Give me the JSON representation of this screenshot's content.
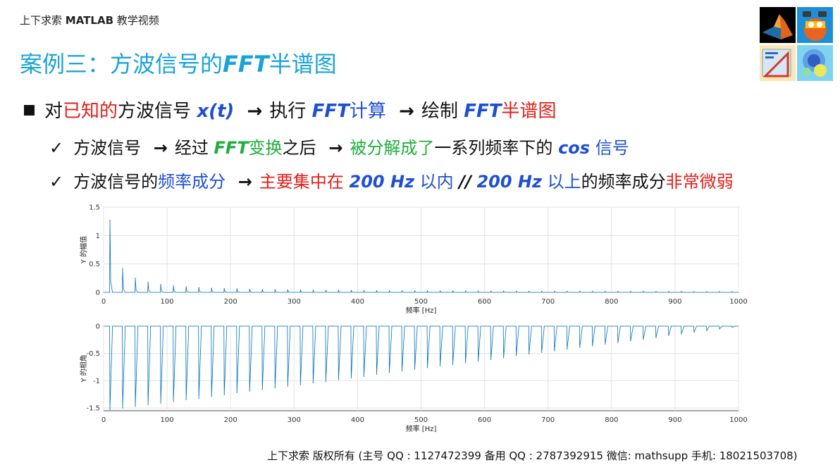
{
  "header": {
    "brand_cn": "上下求索",
    "brand_matlab": "MATLAB",
    "brand_suffix": "教学视频",
    "title_prefix": "案例三：方波信号的",
    "title_fft": "FFT",
    "title_suffix": "半谱图"
  },
  "icons": [
    "matlab-logo-icon",
    "game-character-icon",
    "drafting-tools-icon",
    "heatmap-icon"
  ],
  "bullets": {
    "line1": {
      "a": "对",
      "b": "已知的",
      "c": "方波信号",
      "d": "x(t)",
      "arrow1": "→",
      "e": "执行",
      "f": "FFT",
      "g": "计算",
      "arrow2": "→",
      "h": "绘制",
      "i": "FFT",
      "j": "半谱图"
    },
    "line2": {
      "check": "✓",
      "a": "方波信号",
      "arrow1": "→",
      "b": "经过",
      "c": "FFT",
      "d": "变换",
      "e": "之后",
      "arrow2": "→",
      "f": "被分解成了",
      "g": "一系列频率下的",
      "h": "cos",
      "i": "信号"
    },
    "line3": {
      "check": "✓",
      "a": "方波信号的",
      "b": "频率成分",
      "arrow1": "→",
      "c": "主要集中在",
      "d": "200 Hz",
      "e": "以内",
      "f": "//",
      "g": "200 Hz",
      "h": "以上",
      "i": "的频率成分",
      "j": "非常微弱"
    }
  },
  "colors": {
    "title": "#1aa3d9",
    "red": "#e0201b",
    "blue": "#1f4fd1",
    "green": "#1fae3c",
    "line": "#0072bd"
  },
  "chart_data": [
    {
      "type": "line",
      "xlabel": "频率 [Hz]",
      "ylabel": "Y 的幅值",
      "xlim": [
        0,
        1000
      ],
      "ylim": [
        0,
        1.5
      ],
      "xticks": [
        "0",
        "100",
        "200",
        "300",
        "400",
        "500",
        "600",
        "700",
        "800",
        "900",
        "1000"
      ],
      "yticks": [
        "0",
        "0.5",
        "1",
        "1.5"
      ],
      "grid": true,
      "peaks_x": [
        10,
        30,
        50,
        70,
        90,
        110,
        130,
        150,
        170,
        190,
        210,
        230,
        250,
        270,
        290,
        310,
        330,
        350,
        370,
        390,
        410,
        430,
        450,
        470,
        490,
        510,
        530,
        550,
        570,
        590,
        610,
        630,
        650,
        670,
        690,
        710,
        730,
        750,
        770,
        790,
        810,
        830,
        850,
        870,
        890,
        910,
        930,
        950,
        970,
        990
      ],
      "peaks_y": [
        1.27,
        0.42,
        0.25,
        0.18,
        0.14,
        0.115,
        0.1,
        0.085,
        0.075,
        0.067,
        0.06,
        0.055,
        0.05,
        0.047,
        0.044,
        0.041,
        0.038,
        0.036,
        0.034,
        0.032,
        0.031,
        0.029,
        0.028,
        0.027,
        0.026,
        0.025,
        0.024,
        0.023,
        0.022,
        0.021,
        0.021,
        0.02,
        0.019,
        0.019,
        0.018,
        0.018,
        0.017,
        0.017,
        0.016,
        0.016,
        0.015,
        0.015,
        0.015,
        0.014,
        0.014,
        0.014,
        0.013,
        0.013,
        0.013,
        0.012
      ]
    },
    {
      "type": "line",
      "xlabel": "频率 [Hz]",
      "ylabel": "Y 的相角",
      "xlim": [
        0,
        1000
      ],
      "ylim": [
        -1.55,
        0
      ],
      "xticks": [
        "0",
        "100",
        "200",
        "300",
        "400",
        "500",
        "600",
        "700",
        "800",
        "900",
        "1000"
      ],
      "yticks": [
        "0",
        "-0.5",
        "-1",
        "-1.5"
      ],
      "grid": true,
      "peaks_x": [
        10,
        30,
        50,
        70,
        90,
        110,
        130,
        150,
        170,
        190,
        210,
        230,
        250,
        270,
        290,
        310,
        330,
        350,
        370,
        390,
        410,
        430,
        450,
        470,
        490,
        510,
        530,
        550,
        570,
        590,
        610,
        630,
        650,
        670,
        690,
        710,
        730,
        750,
        770,
        790,
        810,
        830,
        850,
        870,
        890,
        910,
        930,
        950,
        970,
        990
      ],
      "peaks_y": [
        -1.53,
        -1.5,
        -1.47,
        -1.44,
        -1.41,
        -1.38,
        -1.35,
        -1.32,
        -1.29,
        -1.26,
        -1.22,
        -1.19,
        -1.16,
        -1.13,
        -1.1,
        -1.07,
        -1.04,
        -1.01,
        -0.98,
        -0.95,
        -0.92,
        -0.88,
        -0.85,
        -0.82,
        -0.79,
        -0.76,
        -0.73,
        -0.7,
        -0.67,
        -0.64,
        -0.61,
        -0.58,
        -0.54,
        -0.51,
        -0.48,
        -0.45,
        -0.42,
        -0.39,
        -0.36,
        -0.33,
        -0.3,
        -0.27,
        -0.24,
        -0.21,
        -0.17,
        -0.14,
        -0.11,
        -0.08,
        -0.05,
        -0.02
      ]
    }
  ],
  "footer": {
    "a": "上下求索 版权所有 (主号 QQ : 1127472399   备用 QQ : 2787392915   微信: mathsupp   手机: 18021503708)"
  }
}
